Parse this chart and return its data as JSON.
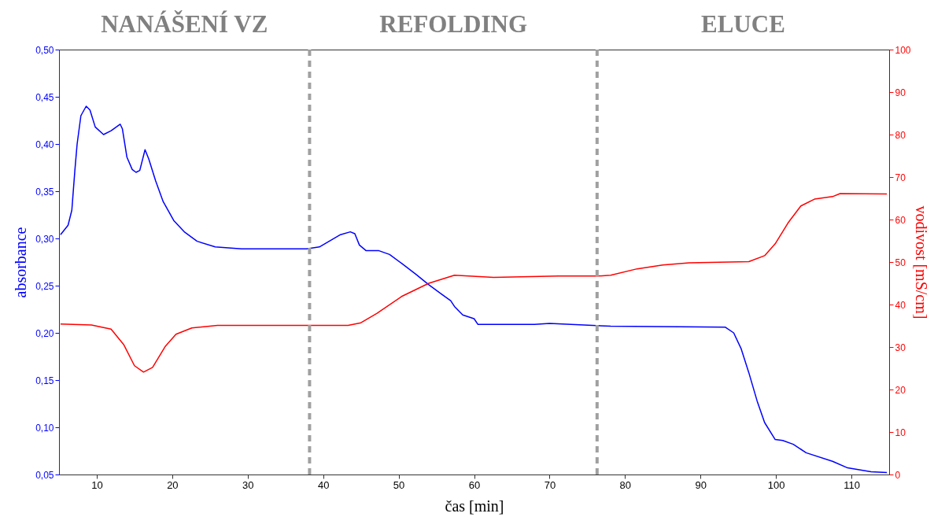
{
  "chart_data": {
    "type": "line",
    "xlabel": "čas [min]",
    "ylabel": "absorbance",
    "y2label": "vodivost [mS/cm]",
    "annotations": [
      "NANÁŠENÍ VZ",
      "REFOLDING",
      "ELUCE"
    ],
    "xlim": [
      5,
      115
    ],
    "xticks": [
      10,
      20,
      30,
      40,
      50,
      60,
      70,
      80,
      90,
      100,
      110
    ],
    "ylim": [
      0.05,
      0.5
    ],
    "yticks": [
      {
        "value": 0.05,
        "label": "0,05"
      },
      {
        "value": 0.1,
        "label": "0,10"
      },
      {
        "value": 0.15,
        "label": "0,15"
      },
      {
        "value": 0.2,
        "label": "0,20"
      },
      {
        "value": 0.25,
        "label": "0,25"
      },
      {
        "value": 0.3,
        "label": "0,30"
      },
      {
        "value": 0.35,
        "label": "0,35"
      },
      {
        "value": 0.4,
        "label": "0,40"
      },
      {
        "value": 0.45,
        "label": "0,45"
      },
      {
        "value": 0.5,
        "label": "0,50"
      }
    ],
    "y2lim": [
      0,
      100
    ],
    "y2ticks": [
      0,
      10,
      20,
      30,
      40,
      50,
      60,
      70,
      80,
      90,
      100
    ],
    "grid": false,
    "marker": "none",
    "line_style": "solid",
    "ref_lines": [
      {
        "axis": "x",
        "value": 38.2,
        "color": "#a0a0a0",
        "line_style": "dashed"
      },
      {
        "axis": "x",
        "value": 76.3,
        "color": "#a0a0a0",
        "line_style": "dashed"
      }
    ],
    "series": [
      {
        "color": "#0000ff",
        "x": [
          5.2,
          6.2,
          6.7,
          7.1,
          7.4,
          7.9,
          8.6,
          9.1,
          9.8,
          10.9,
          11.9,
          13.1,
          13.4,
          14.0,
          14.7,
          15.2,
          15.7,
          16.4,
          16.9,
          17.8,
          18.8,
          20.2,
          21.6,
          23.3,
          25.7,
          29.2,
          37.8,
          39.5,
          42.3,
          43.6,
          44.2,
          44.8,
          45.7,
          47.4,
          48.8,
          50.5,
          52.3,
          54.0,
          55.7,
          56.9,
          57.4,
          58.5,
          60.0,
          60.5,
          68.0,
          70.0,
          78.1,
          93.3,
          94.4,
          95.4,
          96.4,
          97.5,
          98.5,
          99.9,
          100.9,
          102.3,
          104.0,
          107.5,
          109.5,
          112.6,
          114.7
        ],
        "values": [
          0.304,
          0.314,
          0.33,
          0.372,
          0.4,
          0.43,
          0.44,
          0.436,
          0.418,
          0.41,
          0.414,
          0.421,
          0.416,
          0.386,
          0.373,
          0.37,
          0.372,
          0.394,
          0.384,
          0.361,
          0.339,
          0.319,
          0.307,
          0.297,
          0.291,
          0.289,
          0.289,
          0.291,
          0.304,
          0.307,
          0.305,
          0.293,
          0.287,
          0.287,
          0.283,
          0.273,
          0.262,
          0.251,
          0.241,
          0.234,
          0.228,
          0.219,
          0.215,
          0.209,
          0.209,
          0.21,
          0.207,
          0.206,
          0.2,
          0.183,
          0.158,
          0.128,
          0.105,
          0.087,
          0.086,
          0.082,
          0.073,
          0.064,
          0.057,
          0.053,
          0.052
        ]
      },
      {
        "color": "#ff0000",
        "axis": "y2",
        "x": [
          5.2,
          9.3,
          11.9,
          13.6,
          15.0,
          16.2,
          17.4,
          19.1,
          20.5,
          22.6,
          26.0,
          43.3,
          45.0,
          47.1,
          50.5,
          54.0,
          57.4,
          62.6,
          71.2,
          76.4,
          78.1,
          81.6,
          85.0,
          88.5,
          96.4,
          98.5,
          99.9,
          101.6,
          103.3,
          105.1,
          107.5,
          108.5,
          114.7
        ],
        "values": [
          35.4,
          35.2,
          34.2,
          30.5,
          25.6,
          24.1,
          25.2,
          30.2,
          33.0,
          34.5,
          35.1,
          35.1,
          35.7,
          37.9,
          42.0,
          45.0,
          46.9,
          46.4,
          46.7,
          46.7,
          46.9,
          48.4,
          49.3,
          49.8,
          50.1,
          51.5,
          54.3,
          59.2,
          63.2,
          64.8,
          65.4,
          66.1,
          66.0
        ]
      }
    ]
  }
}
